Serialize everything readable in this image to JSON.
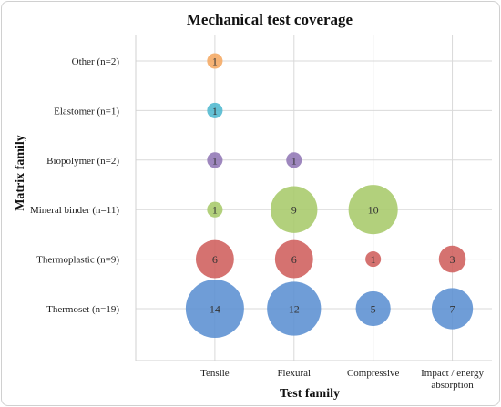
{
  "chart_data": {
    "type": "scatter",
    "title": "Mechanical test coverage",
    "xlabel": "Test family",
    "ylabel": "Matrix family",
    "x_categories": [
      [
        "Tensile"
      ],
      [
        "Flexural"
      ],
      [
        "Compressive"
      ],
      [
        "Impact / energy",
        "absorption"
      ]
    ],
    "y_categories": [
      "Thermoset (n=19)",
      "Thermoplastic (n=9)",
      "Mineral binder (n=11)",
      "Biopolymer (n=2)",
      "Elastomer (n=1)",
      "Other (n=2)"
    ],
    "grid": true,
    "legend": "none",
    "colors": {
      "Thermoset (n=19)": "#5b8fd2",
      "Thermoplastic (n=9)": "#cf5f5c",
      "Mineral binder (n=11)": "#a7c96a",
      "Biopolymer (n=2)": "#9176b5",
      "Elastomer (n=1)": "#4fb8cf",
      "Other (n=2)": "#f5a862"
    },
    "points": [
      {
        "x": 0,
        "y": 0,
        "value": 14,
        "label": "14"
      },
      {
        "x": 1,
        "y": 0,
        "value": 12,
        "label": "12"
      },
      {
        "x": 2,
        "y": 0,
        "value": 5,
        "label": "5"
      },
      {
        "x": 3,
        "y": 0,
        "value": 7,
        "label": "7"
      },
      {
        "x": 0,
        "y": 1,
        "value": 6,
        "label": "6"
      },
      {
        "x": 1,
        "y": 1,
        "value": 6,
        "label": "6"
      },
      {
        "x": 2,
        "y": 1,
        "value": 1,
        "label": "1"
      },
      {
        "x": 3,
        "y": 1,
        "value": 3,
        "label": "3"
      },
      {
        "x": 0,
        "y": 2,
        "value": 1,
        "label": "1"
      },
      {
        "x": 1,
        "y": 2,
        "value": 9,
        "label": "9"
      },
      {
        "x": 2,
        "y": 2,
        "value": 10,
        "label": "10"
      },
      {
        "x": 0,
        "y": 3,
        "value": 1,
        "label": "1"
      },
      {
        "x": 1,
        "y": 3,
        "value": 1,
        "label": "1"
      },
      {
        "x": 0,
        "y": 4,
        "value": 1,
        "label": "1"
      },
      {
        "x": 0,
        "y": 5,
        "value": 1,
        "label": "1"
      }
    ]
  }
}
